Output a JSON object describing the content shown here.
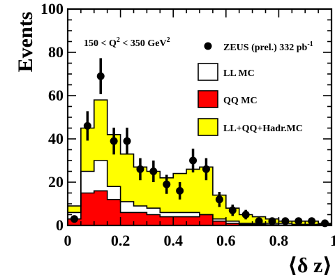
{
  "chart_data": {
    "type": "area",
    "ylabel": "Events",
    "xlabel": "⟨δ z⟩",
    "xlim": [
      0,
      1
    ],
    "ylim": [
      0,
      100
    ],
    "x_ticks": [
      0,
      0.2,
      0.4,
      0.6,
      0.8,
      1
    ],
    "x_tick_labels": [
      "0",
      "0.2",
      "0.4",
      "0.6",
      "0.8",
      "1"
    ],
    "y_ticks": [
      0,
      20,
      40,
      60,
      80,
      100
    ],
    "y_tick_labels": [
      "0",
      "20",
      "40",
      "60",
      "80",
      "100"
    ],
    "annotation": {
      "text": "150 < Q",
      "sup1": "2",
      "text2": " < 350 GeV",
      "sup2": "2"
    },
    "legend": [
      {
        "label": "ZEUS (prel.) 332 pb",
        "sup": "-1",
        "kind": "data"
      },
      {
        "label": "LL MC",
        "kind": "box",
        "fill": "#ffffff"
      },
      {
        "label": "QQ MC",
        "kind": "box",
        "fill": "#ff0000"
      },
      {
        "label": "LL+QQ+Hadr.MC",
        "kind": "box",
        "fill": "#ffff00"
      }
    ],
    "legend_position": "top-right",
    "bin_edges": [
      0,
      0.05,
      0.1,
      0.15,
      0.2,
      0.25,
      0.3,
      0.35,
      0.4,
      0.45,
      0.5,
      0.55,
      0.6,
      0.65,
      0.7,
      0.75,
      0.8,
      0.85,
      0.9,
      0.95,
      1.0
    ],
    "series": [
      {
        "name": "LL+QQ+Hadr.MC",
        "kind": "histogram",
        "color": "#ffff00",
        "values": [
          9,
          45,
          58,
          42,
          33,
          27,
          25,
          22,
          24,
          26,
          27,
          14,
          8,
          5,
          4,
          3,
          2,
          2,
          2,
          1
        ]
      },
      {
        "name": "LL MC",
        "kind": "histogram",
        "color": "#ffffff",
        "values": [
          6,
          25,
          30,
          18,
          11,
          9,
          8,
          6,
          6,
          6,
          5,
          3,
          2,
          1,
          1,
          1,
          1,
          0.5,
          0.5,
          0.5
        ]
      },
      {
        "name": "QQ MC",
        "kind": "histogram",
        "color": "#ff0000",
        "values": [
          3,
          15,
          16,
          12,
          6,
          6,
          5,
          4,
          4,
          4,
          5,
          2,
          1,
          0.5,
          0.5,
          0.3,
          0.2,
          0.2,
          0.2,
          0.1
        ]
      },
      {
        "name": "ZEUS (prel.) 332 pb-1",
        "kind": "points",
        "color": "#000000",
        "x": [
          0.025,
          0.075,
          0.125,
          0.175,
          0.225,
          0.275,
          0.325,
          0.375,
          0.425,
          0.475,
          0.525,
          0.575,
          0.625,
          0.675,
          0.725,
          0.775,
          0.825,
          0.875,
          0.925,
          0.975
        ],
        "y": [
          3,
          46,
          69,
          39,
          39,
          26,
          25,
          19,
          16,
          30,
          26,
          12,
          7,
          5,
          2,
          2,
          2,
          2,
          2,
          1
        ],
        "err": [
          1.7,
          6.8,
          8.3,
          6.2,
          6.2,
          5.1,
          5.0,
          4.4,
          4.0,
          5.5,
          5.1,
          3.5,
          2.6,
          2.2,
          1.4,
          1.4,
          1.4,
          1.4,
          1.4,
          1.0
        ]
      }
    ]
  }
}
